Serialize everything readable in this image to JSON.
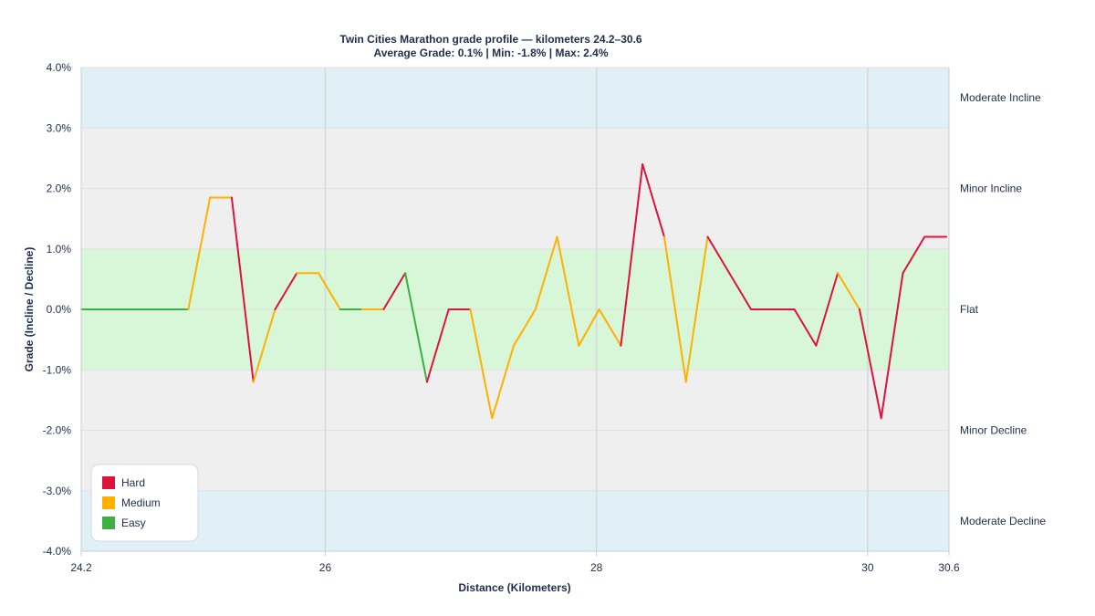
{
  "chart_data": {
    "type": "line",
    "title": "Twin Cities Marathon grade profile — kilometers 24.2–30.6",
    "subtitle": "Average Grade: 0.1% | Min: -1.8% | Max: 2.4%",
    "xlabel": "Distance (Kilometers)",
    "ylabel": "Grade (Incline / Decline)",
    "xlim": [
      24.2,
      30.6
    ],
    "ylim": [
      -4,
      4
    ],
    "x_ticks": [
      24.2,
      26,
      28,
      30,
      30.6
    ],
    "x_tick_labels": [
      "24.2",
      "26",
      "28",
      "30",
      "30.6"
    ],
    "y_ticks": [
      4,
      3,
      2,
      1,
      0,
      -1,
      -2,
      -3,
      -4
    ],
    "y_tick_labels": [
      "4.0%",
      "3.0%",
      "2.0%",
      "1.0%",
      "0.0%",
      "-1.0%",
      "-2.0%",
      "-3.0%",
      "-4.0%"
    ],
    "vertical_gridlines_at": [
      26,
      28,
      30
    ],
    "zones": [
      {
        "label": "Moderate Incline",
        "from": 3,
        "to": 4,
        "color": "#e1f0f6"
      },
      {
        "label": "Minor Incline",
        "from": 1,
        "to": 3,
        "color": "#efefef"
      },
      {
        "label": "Flat",
        "from": -1,
        "to": 1,
        "color": "#d8f7d8"
      },
      {
        "label": "Minor Decline",
        "from": -3,
        "to": -1,
        "color": "#efefef"
      },
      {
        "label": "Moderate Decline",
        "from": -4,
        "to": -3,
        "color": "#e1f0f6"
      }
    ],
    "difficulty_colors": {
      "Hard": "#dc143c",
      "Medium": "#ffb000",
      "Easy": "#3cb043"
    },
    "legend": {
      "position": "bottom-left",
      "entries": [
        "Hard",
        "Medium",
        "Easy"
      ]
    },
    "points": [
      {
        "x": 24.2,
        "y": 0
      },
      {
        "x": 24.36,
        "y": 0
      },
      {
        "x": 24.52,
        "y": 0
      },
      {
        "x": 24.68,
        "y": 0
      },
      {
        "x": 24.84,
        "y": 0
      },
      {
        "x": 24.99,
        "y": 0
      },
      {
        "x": 25.15,
        "y": 1.85
      },
      {
        "x": 25.31,
        "y": 1.85
      },
      {
        "x": 25.47,
        "y": -1.2
      },
      {
        "x": 25.63,
        "y": 0
      },
      {
        "x": 25.79,
        "y": 0.6
      },
      {
        "x": 25.95,
        "y": 0.6
      },
      {
        "x": 26.11,
        "y": 0
      },
      {
        "x": 26.27,
        "y": 0
      },
      {
        "x": 26.43,
        "y": 0
      },
      {
        "x": 26.59,
        "y": 0.6
      },
      {
        "x": 26.75,
        "y": -1.2
      },
      {
        "x": 26.91,
        "y": 0
      },
      {
        "x": 27.07,
        "y": 0
      },
      {
        "x": 27.23,
        "y": -1.8
      },
      {
        "x": 27.39,
        "y": -0.6
      },
      {
        "x": 27.55,
        "y": 0
      },
      {
        "x": 27.71,
        "y": 1.2
      },
      {
        "x": 27.87,
        "y": -0.6
      },
      {
        "x": 28.02,
        "y": 0
      },
      {
        "x": 28.18,
        "y": -0.6
      },
      {
        "x": 28.34,
        "y": 2.4
      },
      {
        "x": 28.5,
        "y": 1.2
      },
      {
        "x": 28.66,
        "y": -1.2
      },
      {
        "x": 28.82,
        "y": 1.2
      },
      {
        "x": 28.98,
        "y": 0.6
      },
      {
        "x": 29.14,
        "y": 0
      },
      {
        "x": 29.3,
        "y": 0
      },
      {
        "x": 29.46,
        "y": 0
      },
      {
        "x": 29.62,
        "y": -0.6
      },
      {
        "x": 29.78,
        "y": 0.6
      },
      {
        "x": 29.94,
        "y": 0
      },
      {
        "x": 30.1,
        "y": -1.8
      },
      {
        "x": 30.26,
        "y": 0.6
      },
      {
        "x": 30.42,
        "y": 1.2
      },
      {
        "x": 30.58,
        "y": 1.2
      }
    ],
    "segments": [
      "Easy",
      "Easy",
      "Easy",
      "Easy",
      "Easy",
      "Medium",
      "Medium",
      "Hard",
      "Medium",
      "Hard",
      "Medium",
      "Medium",
      "Easy",
      "Medium",
      "Hard",
      "Easy",
      "Hard",
      "Hard",
      "Medium",
      "Medium",
      "Medium",
      "Medium",
      "Medium",
      "Medium",
      "Medium",
      "Hard",
      "Hard",
      "Medium",
      "Medium",
      "Hard",
      "Hard",
      "Hard",
      "Hard",
      "Hard",
      "Hard",
      "Medium",
      "Hard",
      "Hard",
      "Hard",
      "Hard"
    ]
  }
}
